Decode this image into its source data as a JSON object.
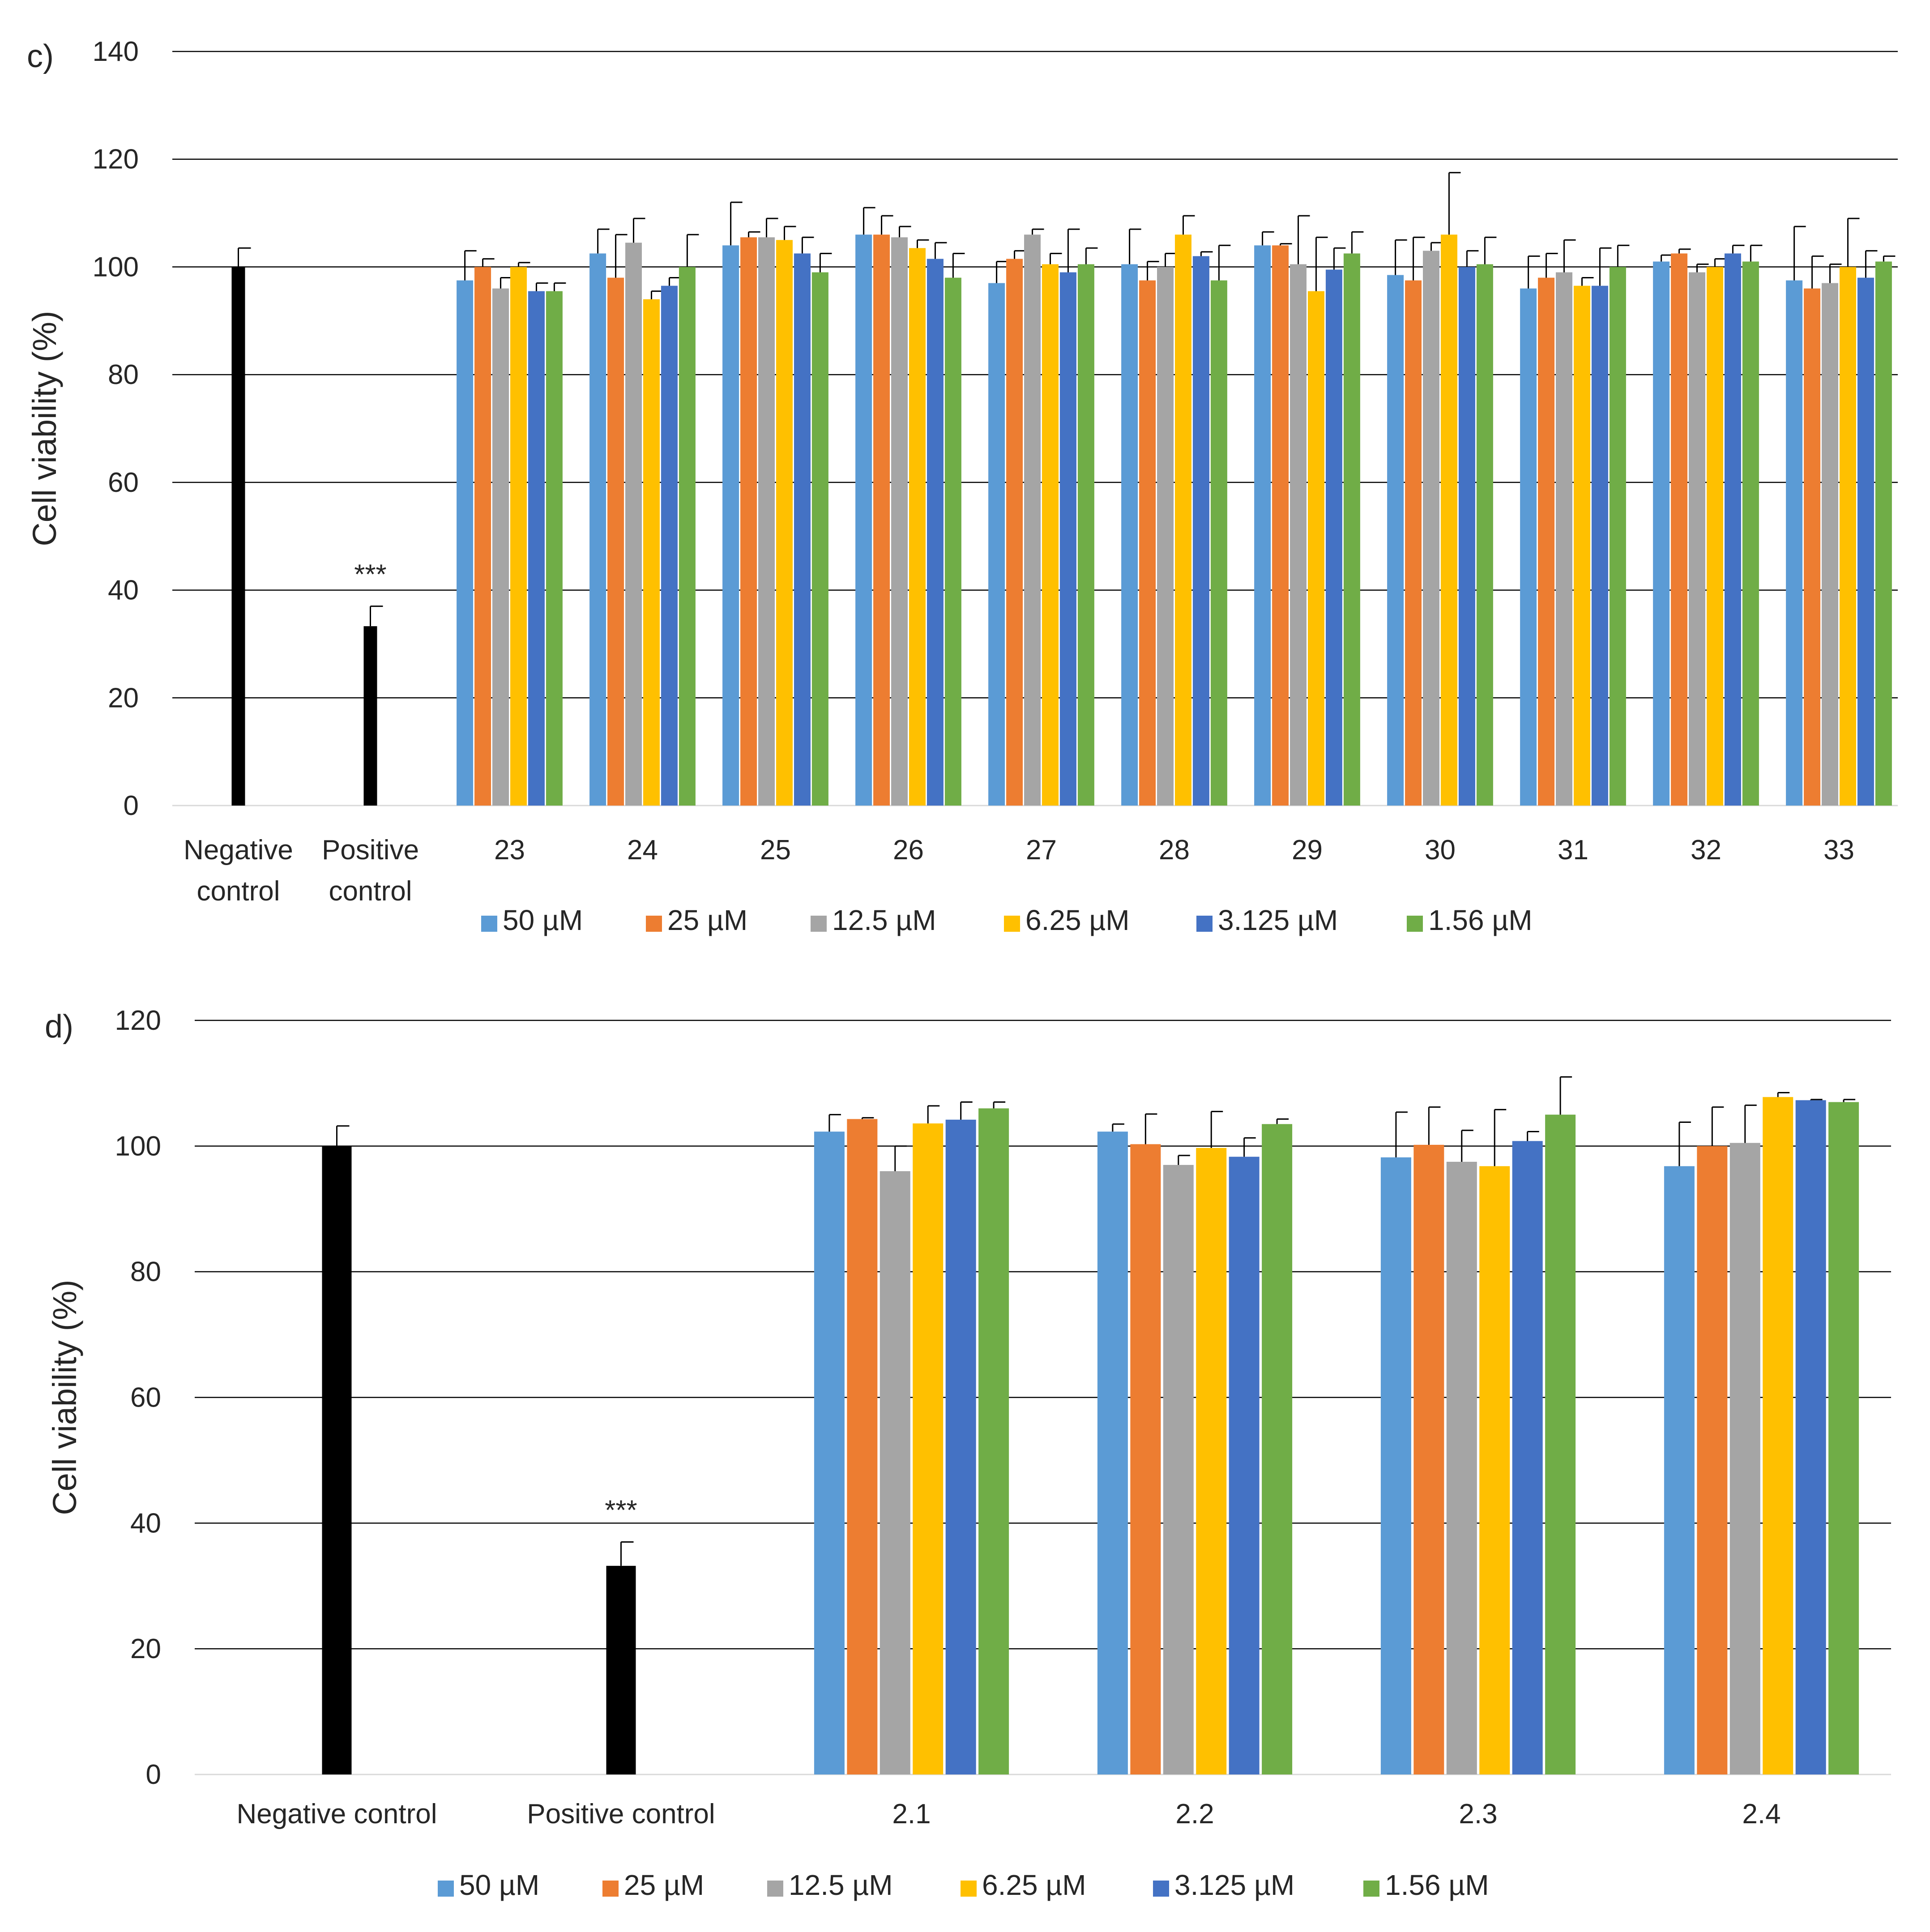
{
  "chart_data": [
    {
      "type": "bar",
      "panel_label": "c)",
      "ylabel": "Cell viability (%)",
      "ylim": [
        0,
        140
      ],
      "yticks": [
        0,
        20,
        40,
        60,
        80,
        100,
        120,
        140
      ],
      "grid": true,
      "legend_position": "bottom",
      "controls": [
        {
          "label_lines": [
            "Negative",
            "control"
          ],
          "value": 100,
          "error": 3.5,
          "color": "#000000",
          "annotation": ""
        },
        {
          "label_lines": [
            "Positive",
            "control"
          ],
          "value": 33.3,
          "error": 3.7,
          "color": "#000000",
          "annotation": "***"
        }
      ],
      "categories": [
        "23",
        "24",
        "25",
        "26",
        "27",
        "28",
        "29",
        "30",
        "31",
        "32",
        "33"
      ],
      "series": [
        {
          "name": "50 µM",
          "color": "#5B9BD5",
          "values": [
            97.5,
            102.5,
            104,
            106,
            97,
            100.5,
            104,
            98.5,
            96,
            101,
            97.5
          ],
          "errors": [
            5.5,
            4.5,
            8,
            5,
            4,
            6.5,
            2.5,
            6.5,
            6,
            1.2,
            10
          ]
        },
        {
          "name": "25 µM",
          "color": "#ED7D31",
          "values": [
            100,
            98,
            105.5,
            106,
            101.5,
            97.5,
            104,
            97.5,
            98,
            102.5,
            96
          ],
          "errors": [
            1.5,
            8,
            1,
            3.5,
            1.5,
            3.5,
            0.3,
            8,
            4.5,
            0.8,
            6
          ]
        },
        {
          "name": "12.5 µM",
          "color": "#A5A5A5",
          "values": [
            96,
            104.5,
            105.5,
            105.5,
            106,
            100,
            100.5,
            103,
            99,
            99,
            97
          ],
          "errors": [
            2,
            4.5,
            3.5,
            2,
            1,
            2.5,
            9,
            1.5,
            6,
            1.5,
            3.5
          ]
        },
        {
          "name": "6.25 µM",
          "color": "#FFC000",
          "values": [
            100,
            94,
            105,
            103.5,
            100.5,
            106,
            95.5,
            106,
            96.5,
            100,
            100
          ],
          "errors": [
            0.8,
            1.5,
            2.5,
            1.5,
            2,
            3.5,
            10,
            11.5,
            1.5,
            1.5,
            9
          ]
        },
        {
          "name": "3.125 µM",
          "color": "#4472C4",
          "values": [
            95.5,
            96.5,
            102.5,
            101.5,
            99,
            102,
            99.5,
            100,
            96.5,
            102.5,
            98
          ],
          "errors": [
            1.5,
            1.5,
            3,
            3,
            8,
            0.8,
            4,
            3,
            7,
            1.5,
            5
          ]
        },
        {
          "name": "1.56 µM",
          "color": "#70AD47",
          "values": [
            95.5,
            100,
            99,
            98,
            100.5,
            97.5,
            102.5,
            100.5,
            100,
            101,
            101
          ],
          "errors": [
            1.5,
            6,
            3.5,
            4.5,
            3,
            6.5,
            4,
            5,
            4,
            3,
            1
          ]
        }
      ]
    },
    {
      "type": "bar",
      "panel_label": "d)",
      "ylabel": "Cell viability (%)",
      "ylim": [
        0,
        120
      ],
      "yticks": [
        0,
        20,
        40,
        60,
        80,
        100,
        120
      ],
      "grid": true,
      "legend_position": "bottom",
      "controls": [
        {
          "label_lines": [
            "Negative control"
          ],
          "value": 100,
          "error": 3.2,
          "color": "#000000",
          "annotation": ""
        },
        {
          "label_lines": [
            "Positive control"
          ],
          "value": 33.2,
          "error": 3.8,
          "color": "#000000",
          "annotation": "***"
        }
      ],
      "categories": [
        "2.1",
        "2.2",
        "2.3",
        "2.4"
      ],
      "series": [
        {
          "name": "50 µM",
          "color": "#5B9BD5",
          "values": [
            102.3,
            102.3,
            98.2,
            96.8
          ],
          "errors": [
            2.7,
            1.2,
            7.2,
            7
          ]
        },
        {
          "name": "25 µM",
          "color": "#ED7D31",
          "values": [
            104.3,
            100.3,
            100.2,
            100
          ],
          "errors": [
            0.2,
            4.8,
            6,
            6.2
          ]
        },
        {
          "name": "12.5 µM",
          "color": "#A5A5A5",
          "values": [
            96,
            97,
            97.5,
            100.5
          ],
          "errors": [
            4,
            1.5,
            5,
            6
          ]
        },
        {
          "name": "6.25 µM",
          "color": "#FFC000",
          "values": [
            103.6,
            99.7,
            96.8,
            107.8
          ],
          "errors": [
            2.8,
            5.8,
            9,
            0.7
          ]
        },
        {
          "name": "3.125 µM",
          "color": "#4472C4",
          "values": [
            104.2,
            98.3,
            100.8,
            107.3
          ],
          "errors": [
            2.8,
            3,
            1.5,
            0.1
          ]
        },
        {
          "name": "1.56 µM",
          "color": "#70AD47",
          "values": [
            106,
            103.5,
            105,
            107
          ],
          "errors": [
            1,
            0.8,
            6,
            0.4
          ]
        }
      ]
    }
  ]
}
